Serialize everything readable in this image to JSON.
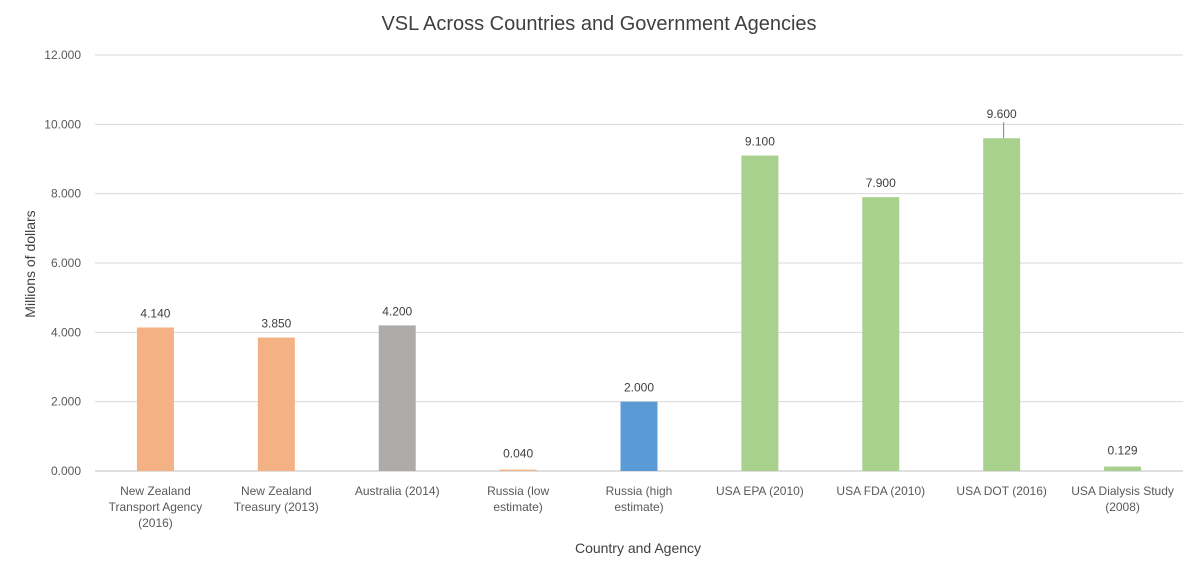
{
  "chart_data": {
    "type": "bar",
    "title": "VSL Across Countries and Government Agencies",
    "xlabel": "Country and Agency",
    "ylabel": "Millions of dollars",
    "ylim": [
      0,
      12
    ],
    "yticks": [
      "0.000",
      "2.000",
      "4.000",
      "6.000",
      "8.000",
      "10.000",
      "12.000"
    ],
    "grid": true,
    "legend": "none",
    "categories": [
      [
        "New Zealand",
        "Transport Agency",
        "(2016)"
      ],
      [
        "New Zealand",
        "Treasury (2013)"
      ],
      [
        "Australia (2014)"
      ],
      [
        "Russia (low",
        "estimate)"
      ],
      [
        "Russia (high",
        "estimate)"
      ],
      [
        "USA EPA (2010)"
      ],
      [
        "USA FDA (2010)"
      ],
      [
        "USA DOT (2016)"
      ],
      [
        "USA Dialysis Study",
        "(2008)"
      ]
    ],
    "values": [
      4.14,
      3.85,
      4.2,
      0.04,
      2.0,
      9.1,
      7.9,
      9.6,
      0.129
    ],
    "data_labels": [
      "4.140",
      "3.850",
      "4.200",
      "0.040",
      "2.000",
      "9.100",
      "7.900",
      "9.600",
      "0.129"
    ],
    "colors": [
      "#f4b183",
      "#f4b183",
      "#aeaaaa",
      "#f4b183",
      "#5b9bd5",
      "#a9d18e",
      "#a9d18e",
      "#a9d18e",
      "#a9d18e"
    ],
    "label_leader_line": [
      false,
      false,
      false,
      false,
      false,
      false,
      false,
      true,
      false
    ]
  }
}
